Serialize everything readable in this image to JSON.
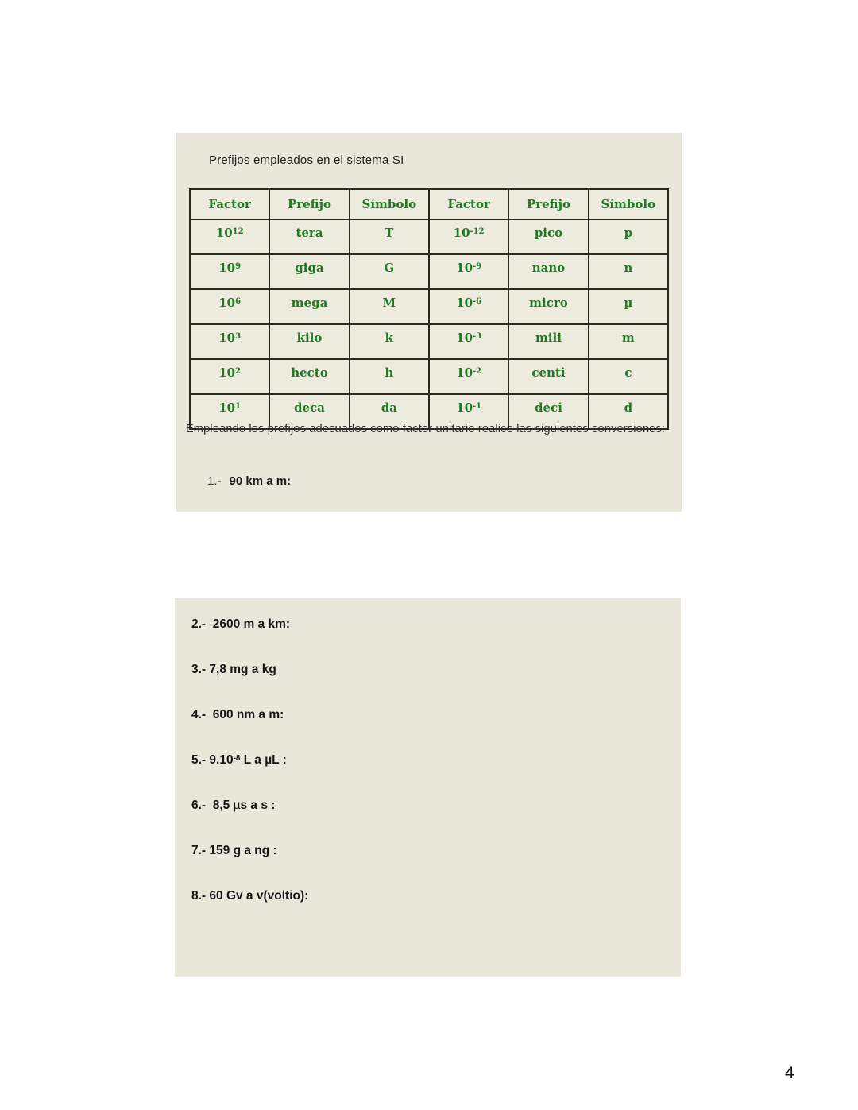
{
  "colors": {
    "panel_bg": "#e9e7da",
    "cell_bg": "#edebde",
    "table_green": "#1e7b21",
    "border": "#2b2a20",
    "text": "#1b1b1b"
  },
  "prefix_section": {
    "title": "Prefijos empleados en el sistema SI",
    "table": {
      "headers": [
        "Factor",
        "Prefijo",
        "Símbolo",
        "Factor",
        "Prefijo",
        "Símbolo"
      ],
      "rows": [
        [
          [
            {
              "t": "10"
            },
            {
              "t": "12",
              "sup": true
            }
          ],
          [
            {
              "t": "tera"
            }
          ],
          [
            {
              "t": "T"
            }
          ],
          [
            {
              "t": "10"
            },
            {
              "t": "-12",
              "sup": true
            }
          ],
          [
            {
              "t": "pico"
            }
          ],
          [
            {
              "t": "p"
            }
          ]
        ],
        [
          [
            {
              "t": "10"
            },
            {
              "t": "9",
              "sup": true
            }
          ],
          [
            {
              "t": "giga"
            }
          ],
          [
            {
              "t": "G"
            }
          ],
          [
            {
              "t": "10"
            },
            {
              "t": "-9",
              "sup": true
            }
          ],
          [
            {
              "t": "nano"
            }
          ],
          [
            {
              "t": "n"
            }
          ]
        ],
        [
          [
            {
              "t": "10"
            },
            {
              "t": "6",
              "sup": true
            }
          ],
          [
            {
              "t": "mega"
            }
          ],
          [
            {
              "t": "M"
            }
          ],
          [
            {
              "t": "10"
            },
            {
              "t": "-6",
              "sup": true
            }
          ],
          [
            {
              "t": "micro"
            }
          ],
          [
            {
              "t": "µ"
            }
          ]
        ],
        [
          [
            {
              "t": "10"
            },
            {
              "t": "3",
              "sup": true
            }
          ],
          [
            {
              "t": "kilo"
            }
          ],
          [
            {
              "t": "k"
            }
          ],
          [
            {
              "t": "10"
            },
            {
              "t": "-3",
              "sup": true
            }
          ],
          [
            {
              "t": "mili"
            }
          ],
          [
            {
              "t": "m"
            }
          ]
        ],
        [
          [
            {
              "t": "10"
            },
            {
              "t": "2",
              "sup": true
            }
          ],
          [
            {
              "t": "hecto"
            }
          ],
          [
            {
              "t": "h"
            }
          ],
          [
            {
              "t": "10"
            },
            {
              "t": "-2",
              "sup": true
            }
          ],
          [
            {
              "t": "centi"
            }
          ],
          [
            {
              "t": "c"
            }
          ]
        ],
        [
          [
            {
              "t": "10"
            },
            {
              "t": "1",
              "sup": true
            }
          ],
          [
            {
              "t": "deca"
            }
          ],
          [
            {
              "t": "da"
            }
          ],
          [
            {
              "t": "10"
            },
            {
              "t": "-1",
              "sup": true
            }
          ],
          [
            {
              "t": "deci"
            }
          ],
          [
            {
              "t": "d"
            }
          ]
        ]
      ]
    },
    "instructions": "Empleando los prefijos adecuados como factor unitario realice las siguientes conversiones:",
    "exercise1": {
      "number": "1.-",
      "text": "90 km a m:"
    }
  },
  "exercises": [
    {
      "number": "2.-",
      "segments": [
        {
          "t": "  2600 m a km:"
        }
      ]
    },
    {
      "number": "3.-",
      "segments": [
        {
          "t": " 7,8 mg a kg"
        }
      ]
    },
    {
      "number": "4.-",
      "segments": [
        {
          "t": "  600 nm a m:"
        }
      ]
    },
    {
      "number": "5.-",
      "segments": [
        {
          "t": " 9.10"
        },
        {
          "t": "-8",
          "sup": true
        },
        {
          "t": " L a µL :"
        }
      ]
    },
    {
      "number": "6.-",
      "segments": [
        {
          "t": "  8,5 "
        },
        {
          "t": "µ",
          "light": true
        },
        {
          "t": "s a s :"
        }
      ]
    },
    {
      "number": "7.-",
      "segments": [
        {
          "t": " 159 g a ng :"
        }
      ]
    },
    {
      "number": "8.-",
      "segments": [
        {
          "t": " 60 Gv a v(voltio):"
        }
      ]
    }
  ],
  "page": {
    "number": "4"
  }
}
